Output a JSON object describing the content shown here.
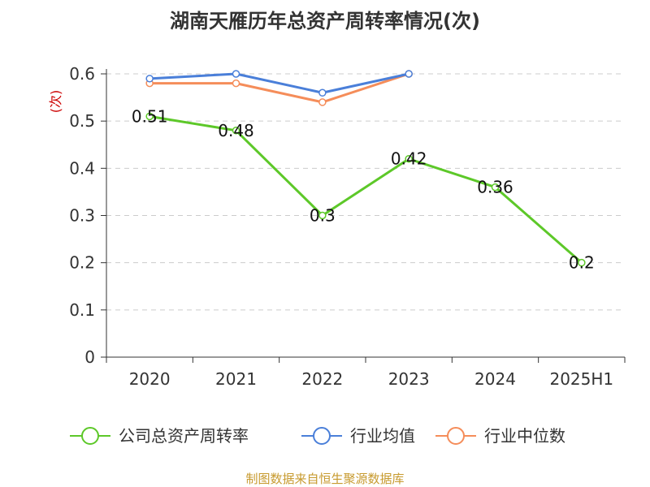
{
  "chart_data": {
    "type": "line",
    "title": "湖南天雁历年总资产周转率情况(次)",
    "ylabel": "(次)",
    "categories": [
      "2020",
      "2021",
      "2022",
      "2023",
      "2024",
      "2025H1"
    ],
    "y_ticks": [
      "0",
      "0.1",
      "0.2",
      "0.3",
      "0.4",
      "0.5",
      "0.6"
    ],
    "ylim": [
      0,
      0.6
    ],
    "grid": true,
    "legend_position": "bottom",
    "series": [
      {
        "name": "公司总资产周转率",
        "color": "#5dc829",
        "values": [
          0.51,
          0.48,
          0.3,
          0.42,
          0.36,
          0.2
        ],
        "data_labels": [
          "0.51",
          "0.48",
          "0.3",
          "0.42",
          "0.36",
          "0.2"
        ]
      },
      {
        "name": "行业均值",
        "color": "#4a7fd9",
        "values": [
          0.59,
          0.6,
          0.56,
          0.6,
          null,
          null
        ]
      },
      {
        "name": "行业中位数",
        "color": "#f58d5a",
        "values": [
          0.58,
          0.58,
          0.54,
          0.6,
          null,
          null
        ]
      }
    ]
  },
  "source_text": "制图数据来自恒生聚源数据库",
  "colors": {
    "ylabel": "#cc0000",
    "source": "#c79a2e",
    "axis": "#333333",
    "grid": "#cccccc"
  }
}
